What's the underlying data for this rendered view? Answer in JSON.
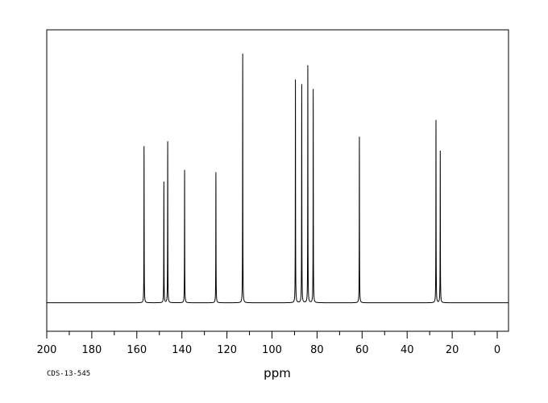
{
  "chart_data": {
    "type": "line",
    "xlabel": "ppm",
    "ylabel": "",
    "xlim": [
      200,
      -5
    ],
    "x_reversed": true,
    "ylim": [
      -0.12,
      1.15
    ],
    "ticks": [
      200,
      180,
      160,
      140,
      120,
      100,
      80,
      60,
      40,
      20,
      0
    ],
    "tick_labels": [
      "200",
      "180",
      "160",
      "140",
      "120",
      "100",
      "80",
      "60",
      "40",
      "20",
      "0"
    ],
    "footnote": "CDS-13-545",
    "grid": false,
    "baseline": 0,
    "peaks": [
      {
        "ppm": 156.8,
        "height": 0.66,
        "line_color": "#000000"
      },
      {
        "ppm": 148.0,
        "height": 0.51,
        "line_color": "#000000"
      },
      {
        "ppm": 146.3,
        "height": 0.68,
        "line_color": "#000000"
      },
      {
        "ppm": 138.8,
        "height": 0.56,
        "line_color": "#000000"
      },
      {
        "ppm": 124.9,
        "height": 0.55,
        "line_color": "#000000"
      },
      {
        "ppm": 113.0,
        "height": 1.05,
        "line_color": "#000000"
      },
      {
        "ppm": 89.6,
        "height": 0.94,
        "line_color": "#000000"
      },
      {
        "ppm": 86.8,
        "height": 0.92,
        "line_color": "#000000"
      },
      {
        "ppm": 84.1,
        "height": 1.0,
        "line_color": "#000000"
      },
      {
        "ppm": 81.7,
        "height": 0.9,
        "line_color": "#000000"
      },
      {
        "ppm": 61.2,
        "height": 0.7,
        "line_color": "#000000"
      },
      {
        "ppm": 27.2,
        "height": 0.77,
        "line_color": "#000000"
      },
      {
        "ppm": 25.3,
        "height": 0.64,
        "line_color": "#000000"
      }
    ]
  }
}
